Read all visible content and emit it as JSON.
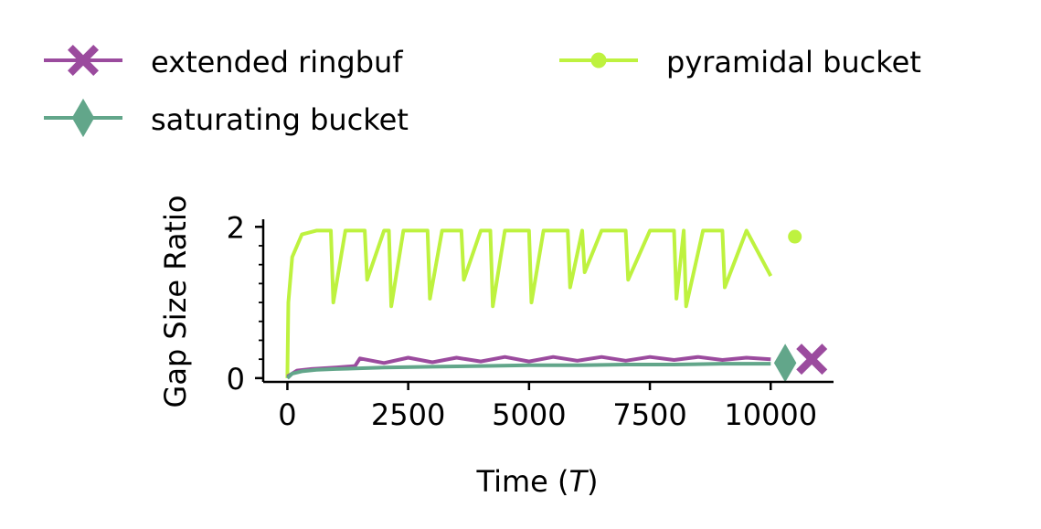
{
  "chart_data": {
    "type": "line",
    "title": "",
    "xlabel": "Time (",
    "xlabel_italic": "T",
    "xlabel_suffix": ")",
    "ylabel": "Gap Size Ratio",
    "xlim": [
      -500,
      11300
    ],
    "ylim": [
      -0.05,
      2.1
    ],
    "xticks": [
      0,
      2500,
      5000,
      7500,
      10000
    ],
    "xtick_labels": [
      "0",
      "2500",
      "5000",
      "7500",
      "10000"
    ],
    "yticks": [
      0,
      2
    ],
    "ytick_labels": [
      "0",
      "2"
    ],
    "y_minor_ticks": [
      0.25,
      0.5,
      0.75,
      1.0,
      1.25,
      1.5,
      1.75
    ],
    "grid": false,
    "legend_placement": "top, outside plot, two columns",
    "series": [
      {
        "name": "extended ringbuf",
        "color": "#9b4b9e",
        "marker": "X",
        "x": [
          0,
          200,
          500,
          1000,
          1400,
          1500,
          2000,
          2500,
          3000,
          3500,
          4000,
          4500,
          5000,
          5500,
          6000,
          6500,
          7000,
          7500,
          8000,
          8500,
          9000,
          9500,
          10000
        ],
        "y": [
          0.02,
          0.1,
          0.12,
          0.14,
          0.16,
          0.26,
          0.2,
          0.27,
          0.21,
          0.27,
          0.22,
          0.28,
          0.22,
          0.28,
          0.23,
          0.28,
          0.23,
          0.28,
          0.24,
          0.28,
          0.24,
          0.27,
          0.25
        ],
        "final_marker": {
          "x": 10850,
          "y": 0.25
        }
      },
      {
        "name": "saturating bucket",
        "color": "#62a68a",
        "marker": "d",
        "x": [
          0,
          100,
          300,
          600,
          1000,
          2000,
          3000,
          4000,
          5000,
          6000,
          7000,
          8000,
          9000,
          10000
        ],
        "y": [
          0.0,
          0.06,
          0.09,
          0.11,
          0.12,
          0.14,
          0.15,
          0.16,
          0.17,
          0.17,
          0.18,
          0.18,
          0.19,
          0.19
        ],
        "final_marker": {
          "x": 10300,
          "y": 0.2
        }
      },
      {
        "name": "pyramidal bucket",
        "color": "#bef23f",
        "marker": "o",
        "x": [
          0,
          20,
          100,
          300,
          600,
          900,
          950,
          1200,
          1600,
          1650,
          2000,
          2100,
          2150,
          2400,
          2900,
          2950,
          3200,
          3600,
          3650,
          4000,
          4200,
          4250,
          4500,
          5000,
          5050,
          5300,
          5800,
          5850,
          6100,
          6150,
          6500,
          7000,
          7050,
          7500,
          8000,
          8050,
          8200,
          8250,
          8600,
          9000,
          9050,
          9500,
          10000
        ],
        "y": [
          0.0,
          1.0,
          1.6,
          1.9,
          1.95,
          1.95,
          1.0,
          1.95,
          1.95,
          1.3,
          1.95,
          1.95,
          0.95,
          1.95,
          1.95,
          1.05,
          1.95,
          1.95,
          1.3,
          1.95,
          1.95,
          0.95,
          1.95,
          1.95,
          1.0,
          1.95,
          1.95,
          1.2,
          1.95,
          1.4,
          1.95,
          1.95,
          1.3,
          1.95,
          1.95,
          1.05,
          1.95,
          0.95,
          1.95,
          1.95,
          1.2,
          1.95,
          1.35
        ],
        "final_marker": {
          "x": 10500,
          "y": 1.87
        }
      }
    ]
  }
}
